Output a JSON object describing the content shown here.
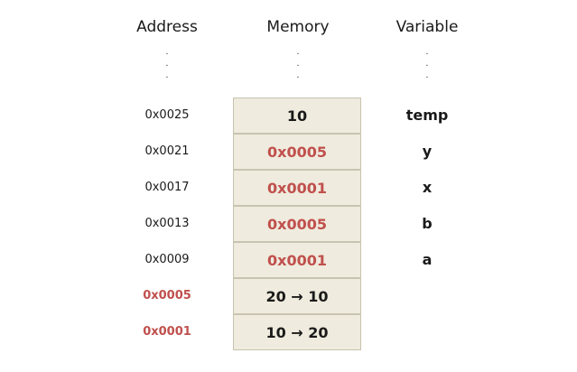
{
  "headers": {
    "address": "Address",
    "memory": "Memory",
    "variable": "Variable"
  },
  "ellipsis": "·\n·\n·",
  "rows": [
    {
      "address": "0x0025",
      "value": "10",
      "variable": "temp",
      "value_is_pointer": false,
      "address_highlight": false
    },
    {
      "address": "0x0021",
      "value": "0x0005",
      "variable": "y",
      "value_is_pointer": true,
      "address_highlight": false
    },
    {
      "address": "0x0017",
      "value": "0x0001",
      "variable": "x",
      "value_is_pointer": true,
      "address_highlight": false
    },
    {
      "address": "0x0013",
      "value": "0x0005",
      "variable": "b",
      "value_is_pointer": true,
      "address_highlight": false
    },
    {
      "address": "0x0009",
      "value": "0x0001",
      "variable": "a",
      "value_is_pointer": true,
      "address_highlight": false
    },
    {
      "address": "0x0005",
      "value": "20 → 10",
      "variable": "",
      "value_is_pointer": false,
      "address_highlight": true
    },
    {
      "address": "0x0001",
      "value": "10 → 20",
      "variable": "",
      "value_is_pointer": false,
      "address_highlight": true
    }
  ],
  "colors": {
    "pointer_text": "#c0504d",
    "cell_fill": "#efebde",
    "cell_border": "#c9c4b0"
  }
}
